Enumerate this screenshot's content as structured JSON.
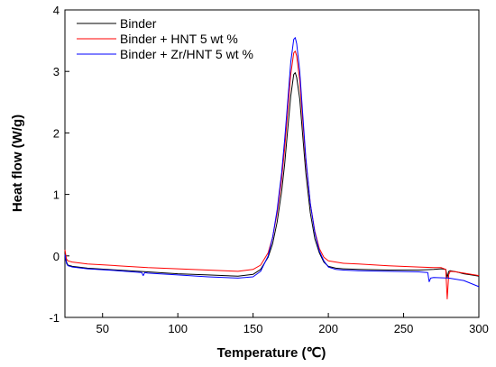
{
  "chart_data": {
    "type": "line",
    "xlabel": "Temperature (℃)",
    "ylabel": "Heat flow (W/g)",
    "xlim": [
      25,
      300
    ],
    "ylim": [
      -1,
      4
    ],
    "xticks": [
      50,
      100,
      150,
      200,
      250,
      300
    ],
    "yticks": [
      -1,
      0,
      1,
      2,
      3,
      4
    ],
    "grid": false,
    "legend_position": "top-left",
    "series": [
      {
        "name": "Binder",
        "color": "#000000",
        "x": [
          25,
          26,
          27,
          30,
          40,
          60,
          80,
          100,
          120,
          140,
          150,
          155,
          160,
          163,
          166,
          169,
          171,
          173,
          175,
          177,
          178,
          179,
          181,
          183,
          185,
          188,
          191,
          194,
          197,
          200,
          205,
          210,
          220,
          240,
          260,
          270,
          275,
          278,
          279,
          280,
          281,
          285,
          290,
          295,
          300
        ],
        "y": [
          0.05,
          -0.1,
          -0.15,
          -0.17,
          -0.2,
          -0.23,
          -0.26,
          -0.29,
          -0.31,
          -0.33,
          -0.3,
          -0.22,
          -0.02,
          0.2,
          0.55,
          1.05,
          1.5,
          2.05,
          2.6,
          2.95,
          2.98,
          2.9,
          2.55,
          1.95,
          1.35,
          0.7,
          0.28,
          0.05,
          -0.1,
          -0.17,
          -0.2,
          -0.21,
          -0.22,
          -0.23,
          -0.23,
          -0.22,
          -0.21,
          -0.22,
          -0.35,
          -0.25,
          -0.24,
          -0.26,
          -0.29,
          -0.31,
          -0.33
        ]
      },
      {
        "name": "Binder + HNT 5 wt %",
        "color": "#ff0000",
        "x": [
          25,
          26,
          27,
          30,
          40,
          60,
          80,
          100,
          120,
          140,
          150,
          155,
          160,
          163,
          166,
          169,
          171,
          173,
          175,
          177,
          178,
          179,
          181,
          183,
          185,
          188,
          191,
          194,
          197,
          200,
          205,
          210,
          220,
          240,
          260,
          270,
          275,
          278,
          279,
          280,
          281,
          285,
          290,
          295,
          300
        ],
        "y": [
          0.1,
          -0.05,
          -0.08,
          -0.1,
          -0.13,
          -0.16,
          -0.19,
          -0.21,
          -0.23,
          -0.25,
          -0.22,
          -0.15,
          0.05,
          0.3,
          0.7,
          1.25,
          1.75,
          2.35,
          2.95,
          3.3,
          3.33,
          3.25,
          2.85,
          2.2,
          1.55,
          0.85,
          0.4,
          0.12,
          -0.02,
          -0.08,
          -0.1,
          -0.12,
          -0.13,
          -0.16,
          -0.18,
          -0.19,
          -0.19,
          -0.22,
          -0.7,
          -0.3,
          -0.25,
          -0.26,
          -0.28,
          -0.3,
          -0.32
        ]
      },
      {
        "name": "Binder + Zr/HNT 5 wt %",
        "color": "#0000ff",
        "x": [
          25,
          26,
          27,
          30,
          40,
          60,
          76,
          77,
          78,
          80,
          100,
          120,
          140,
          150,
          155,
          160,
          163,
          166,
          169,
          171,
          173,
          175,
          177,
          178,
          179,
          181,
          183,
          185,
          188,
          191,
          194,
          197,
          200,
          205,
          210,
          220,
          240,
          260,
          266,
          267,
          268,
          270,
          280,
          290,
          300
        ],
        "y": [
          0.02,
          -0.12,
          -0.16,
          -0.18,
          -0.21,
          -0.24,
          -0.27,
          -0.32,
          -0.27,
          -0.28,
          -0.31,
          -0.34,
          -0.36,
          -0.34,
          -0.25,
          0.0,
          0.3,
          0.75,
          1.35,
          1.9,
          2.5,
          3.15,
          3.52,
          3.55,
          3.45,
          3.0,
          2.3,
          1.6,
          0.85,
          0.38,
          0.08,
          -0.08,
          -0.18,
          -0.22,
          -0.23,
          -0.24,
          -0.25,
          -0.26,
          -0.27,
          -0.42,
          -0.36,
          -0.35,
          -0.36,
          -0.4,
          -0.5
        ]
      }
    ]
  }
}
